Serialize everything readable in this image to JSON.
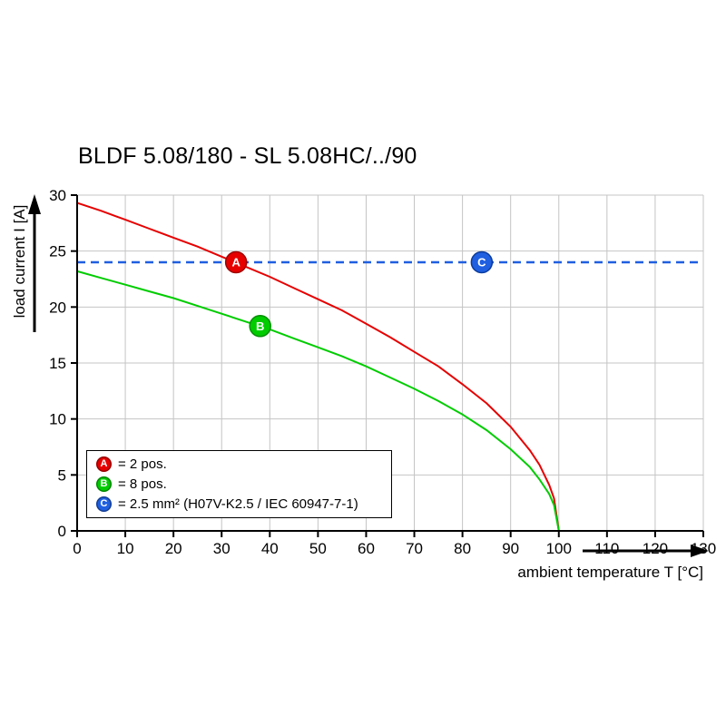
{
  "title": "BLDF 5.08/180 - SL 5.08HC/../90",
  "chart_data": {
    "type": "line",
    "title": "BLDF 5.08/180 - SL 5.08HC/../90",
    "xlabel": "ambient temperature T [°C]",
    "ylabel": "load current I [A]",
    "xlim": [
      0,
      130
    ],
    "ylim": [
      0,
      30
    ],
    "x_ticks": [
      0,
      10,
      20,
      30,
      40,
      50,
      60,
      70,
      80,
      90,
      100,
      110,
      120,
      130
    ],
    "y_ticks": [
      0,
      5,
      10,
      15,
      20,
      25,
      30
    ],
    "grid": true,
    "grid_color": "#c4c4c4",
    "series": [
      {
        "name": "A",
        "label": "= 2 pos.",
        "color": "#e60000",
        "stroke_dark": "#a00000",
        "style": "solid",
        "points": [
          [
            0,
            29.3
          ],
          [
            5,
            28.6
          ],
          [
            10,
            27.8
          ],
          [
            15,
            27.0
          ],
          [
            20,
            26.2
          ],
          [
            25,
            25.4
          ],
          [
            30,
            24.5
          ],
          [
            35,
            23.6
          ],
          [
            40,
            22.7
          ],
          [
            45,
            21.7
          ],
          [
            50,
            20.7
          ],
          [
            55,
            19.7
          ],
          [
            60,
            18.5
          ],
          [
            65,
            17.3
          ],
          [
            70,
            16.0
          ],
          [
            75,
            14.7
          ],
          [
            80,
            13.1
          ],
          [
            85,
            11.4
          ],
          [
            90,
            9.3
          ],
          [
            94,
            7.2
          ],
          [
            96,
            5.9
          ],
          [
            98,
            4.1
          ],
          [
            99,
            2.9
          ],
          [
            100,
            0
          ]
        ]
      },
      {
        "name": "B",
        "label": "= 8 pos.",
        "color": "#00cc00",
        "stroke_dark": "#008f00",
        "style": "solid",
        "points": [
          [
            0,
            23.2
          ],
          [
            5,
            22.6
          ],
          [
            10,
            22.0
          ],
          [
            15,
            21.4
          ],
          [
            20,
            20.8
          ],
          [
            25,
            20.1
          ],
          [
            30,
            19.4
          ],
          [
            35,
            18.7
          ],
          [
            40,
            18.0
          ],
          [
            45,
            17.2
          ],
          [
            50,
            16.4
          ],
          [
            55,
            15.6
          ],
          [
            60,
            14.7
          ],
          [
            65,
            13.7
          ],
          [
            70,
            12.7
          ],
          [
            75,
            11.6
          ],
          [
            80,
            10.4
          ],
          [
            85,
            9.0
          ],
          [
            90,
            7.3
          ],
          [
            94,
            5.7
          ],
          [
            96,
            4.6
          ],
          [
            98,
            3.3
          ],
          [
            99,
            2.3
          ],
          [
            100,
            0
          ]
        ]
      },
      {
        "name": "C",
        "label": "= 2.5 mm² (H07V-K2.5 / IEC 60947-7-1)",
        "color": "#1f5fe0",
        "stroke_dark": "#0b3c9e",
        "style": "dashed",
        "points": [
          [
            0,
            24
          ],
          [
            130,
            24
          ]
        ]
      }
    ],
    "markers": [
      {
        "letter": "A",
        "x": 33,
        "y": 24,
        "color": "#e60000",
        "stroke": "#a00000"
      },
      {
        "letter": "B",
        "x": 38,
        "y": 18.3,
        "color": "#00cc00",
        "stroke": "#008f00"
      },
      {
        "letter": "C",
        "x": 84,
        "y": 24,
        "color": "#1f5fe0",
        "stroke": "#0b3c9e"
      }
    ],
    "legend_position": "bottom-left"
  }
}
